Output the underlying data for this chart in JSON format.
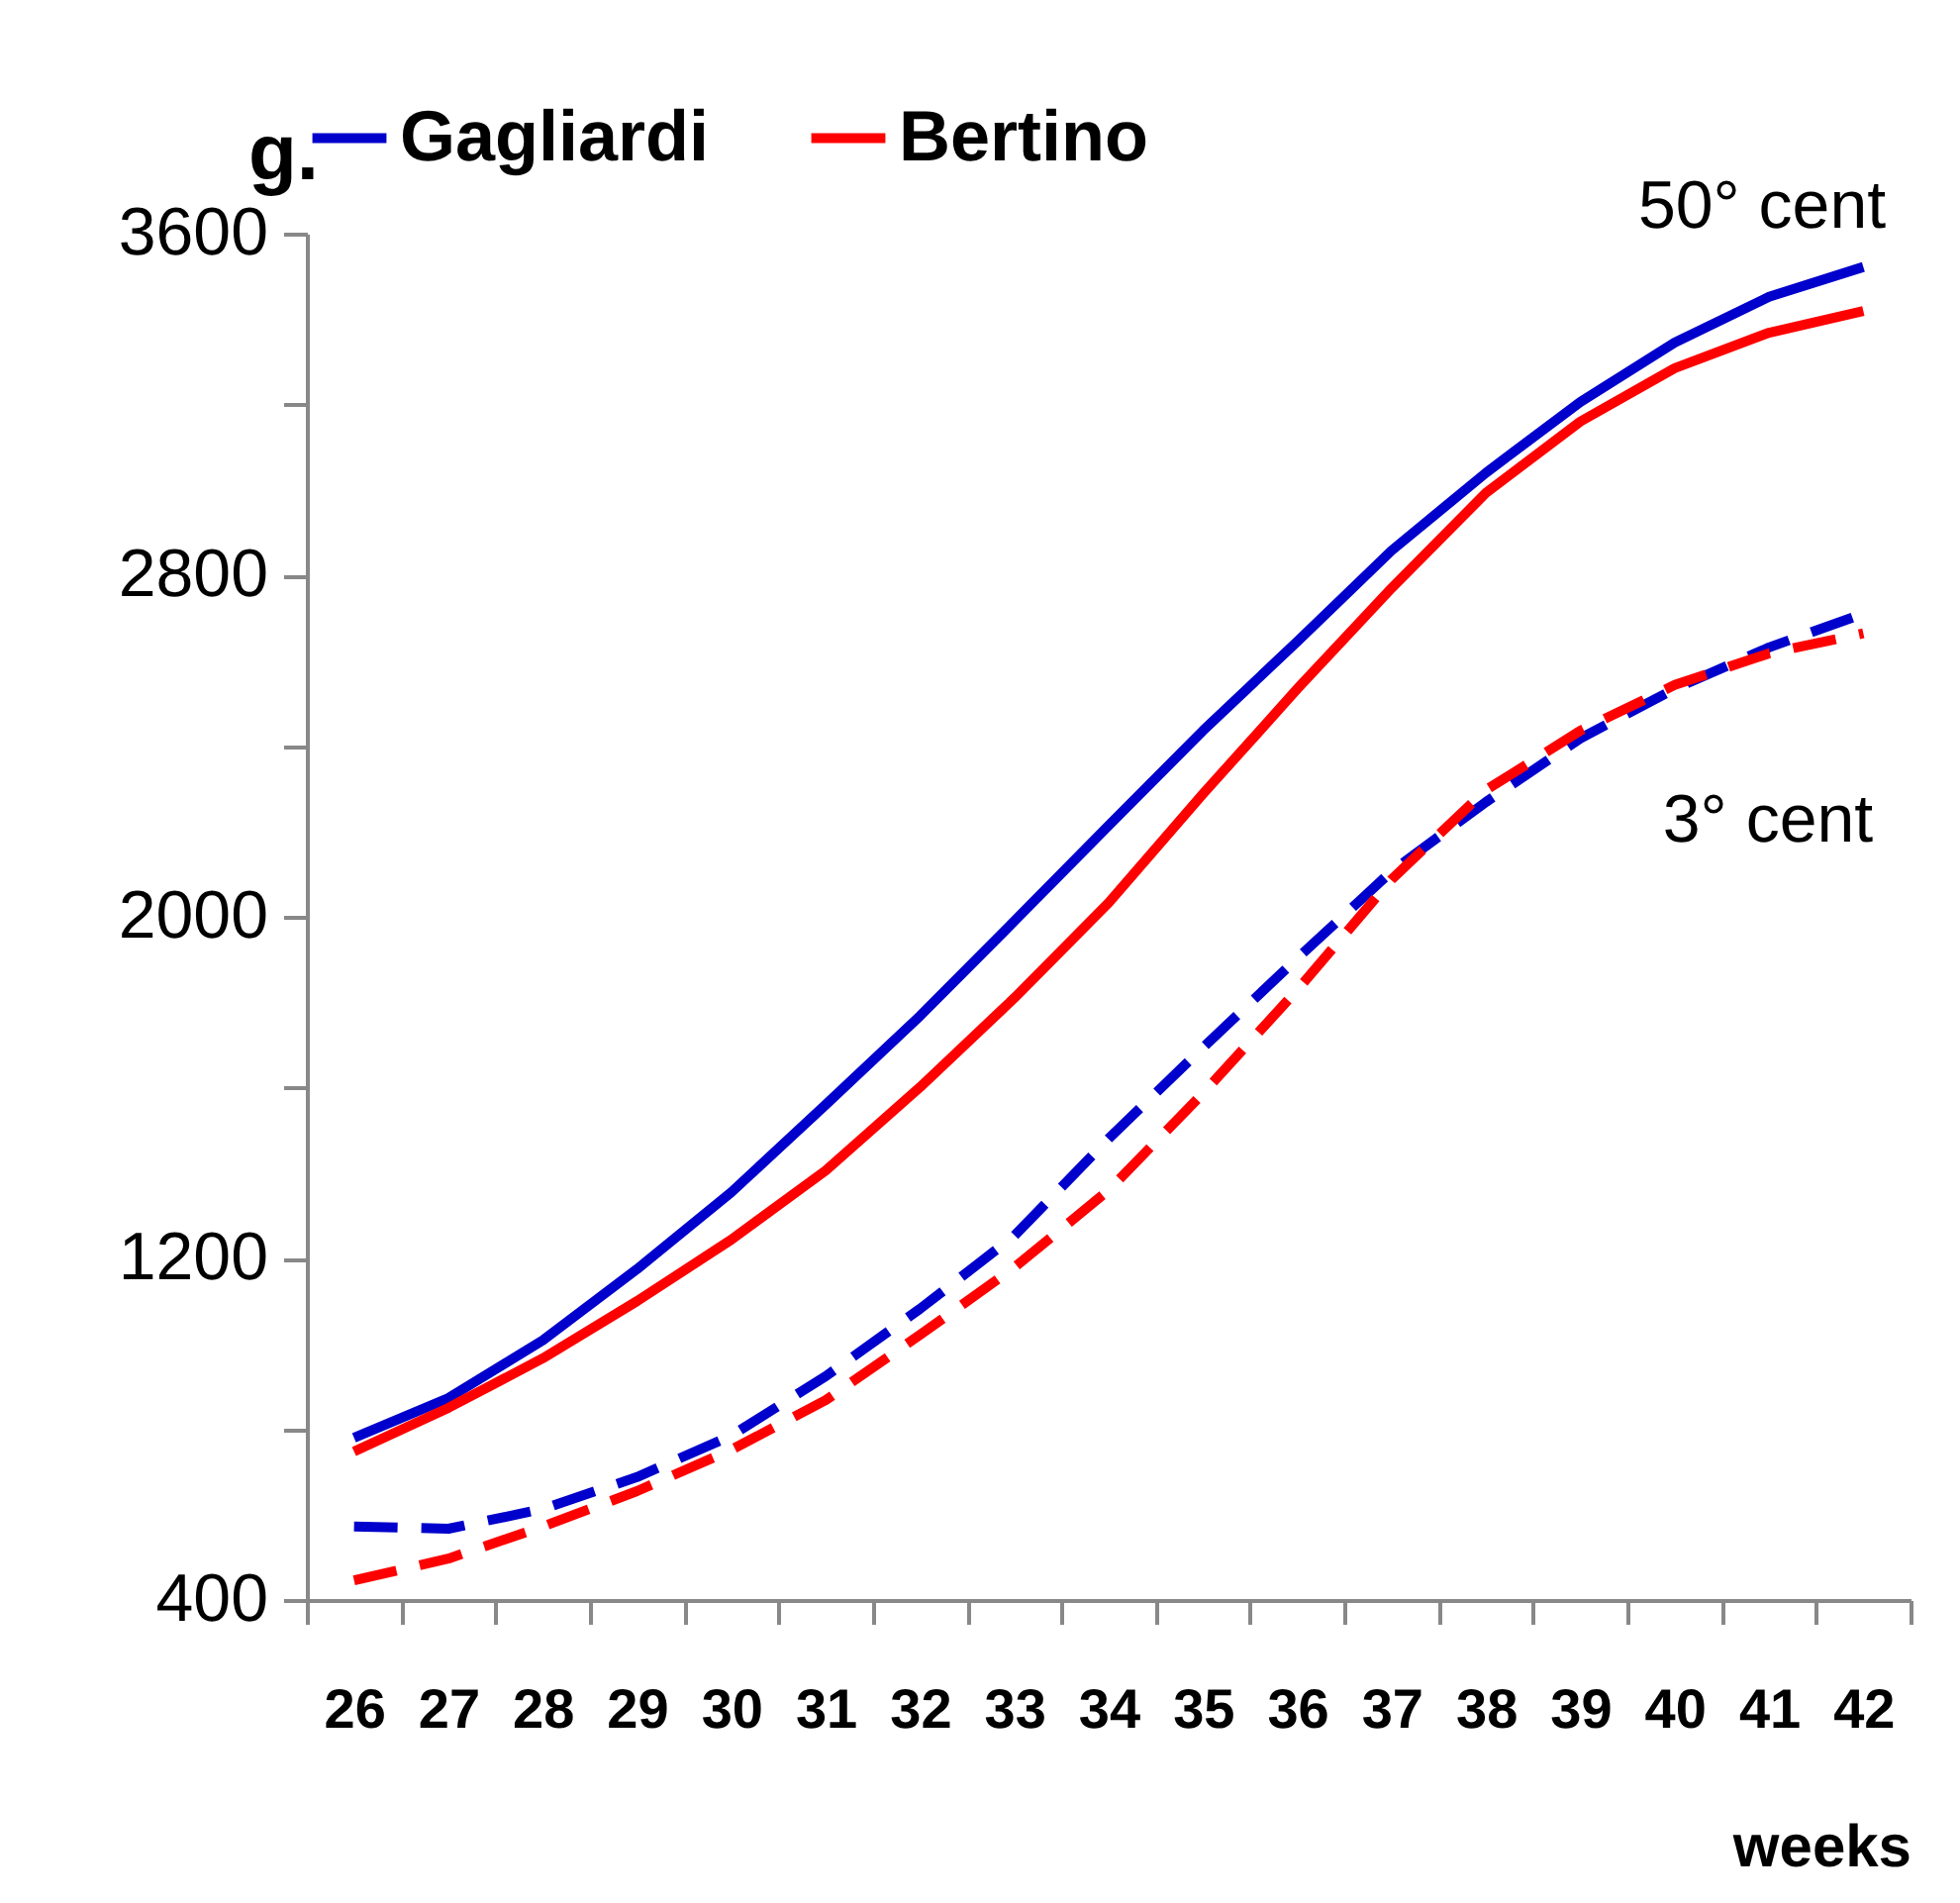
{
  "chart_data": {
    "type": "line",
    "ylabel": "g.",
    "xlabel": "weeks",
    "categories": [
      "26",
      "27",
      "28",
      "29",
      "30",
      "31",
      "32",
      "33",
      "34",
      "35",
      "36",
      "37",
      "38",
      "39",
      "40",
      "41",
      "42"
    ],
    "series": [
      {
        "name": "Gagliardi",
        "color": "#0000cc",
        "line_style": "solid",
        "values": [
          780,
          873,
          1008,
          1175,
          1355,
          1560,
          1768,
          1990,
          2214,
          2436,
          2645,
          2858,
          3040,
          3206,
          3345,
          3452,
          3522
        ]
      },
      {
        "name": "Bertino",
        "color": "#ff0000",
        "line_style": "solid",
        "values": [
          748,
          850,
          966,
          1100,
          1244,
          1406,
          1601,
          1810,
          2033,
          2288,
          2534,
          2770,
          2993,
          3160,
          3285,
          3368,
          3419
        ]
      },
      {
        "color": "#0000cc",
        "line_style": "dashed",
        "values": [
          572,
          567,
          613,
          688,
          785,
          924,
          1082,
          1253,
          1481,
          1694,
          1903,
          2107,
          2269,
          2418,
          2534,
          2631,
          2710
        ]
      },
      {
        "color": "#ff0000",
        "line_style": "dashed",
        "values": [
          446,
          497,
          572,
          655,
          752,
          868,
          1021,
          1179,
          1360,
          1587,
          1829,
          2088,
          2297,
          2436,
          2543,
          2617,
          2664
        ]
      }
    ],
    "ylim": [
      400,
      3600
    ],
    "yticks": [
      400,
      {
        "value": 800,
        "label": null
      },
      1200,
      {
        "value": 1600,
        "label": null
      },
      2000,
      {
        "value": 2400,
        "label": null
      },
      2800,
      {
        "value": 3200,
        "label": null
      },
      3600
    ],
    "grid": false,
    "legend": "top",
    "marker": "none",
    "annotations": [
      "50° cent",
      "3° cent"
    ]
  }
}
